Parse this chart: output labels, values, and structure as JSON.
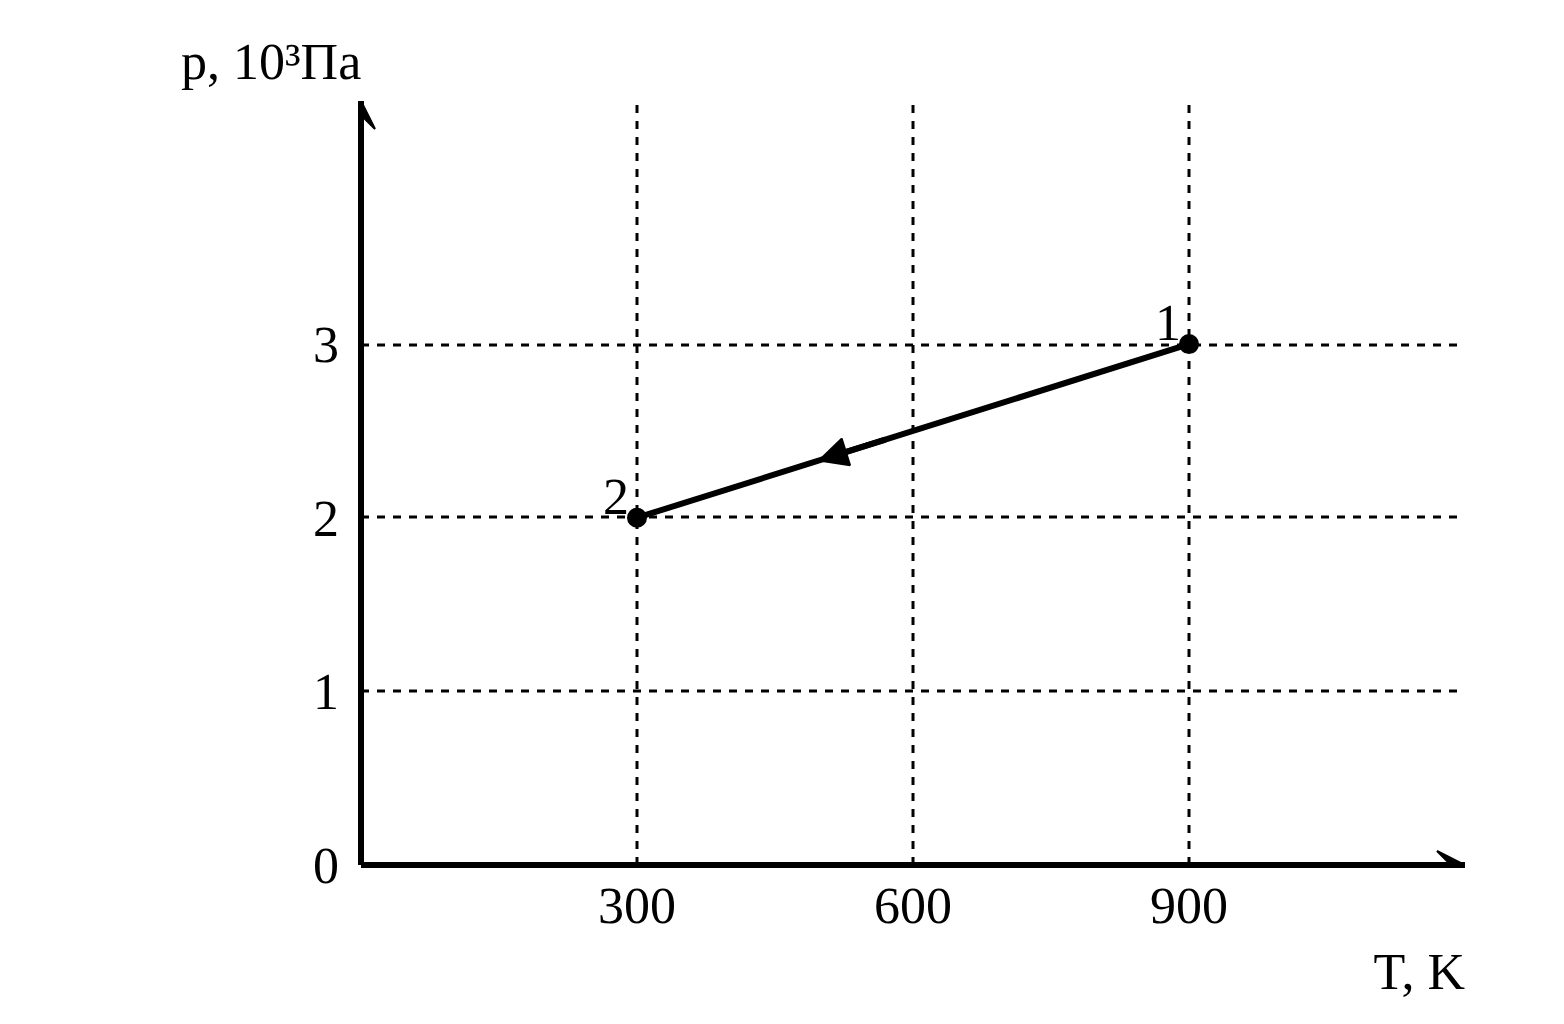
{
  "chart_data": {
    "type": "line",
    "xlabel": "T, K",
    "ylabel": "p, 10³Па",
    "x": [
      300,
      900
    ],
    "series": [
      {
        "color": "#000000",
        "values": [
          2,
          3
        ]
      }
    ],
    "xlim": [
      0,
      1200
    ],
    "ylim": [
      0,
      4.4
    ],
    "xticks": [
      {
        "value": 0,
        "label": null
      },
      300,
      600,
      900
    ],
    "yticks": [
      0,
      1,
      2,
      3
    ],
    "grid": true,
    "marker": "circle",
    "line_style": "solid",
    "annotations": [
      {
        "text": "2",
        "x": 300,
        "y": 2
      },
      {
        "text": "1",
        "x": 900,
        "y": 3
      }
    ]
  }
}
